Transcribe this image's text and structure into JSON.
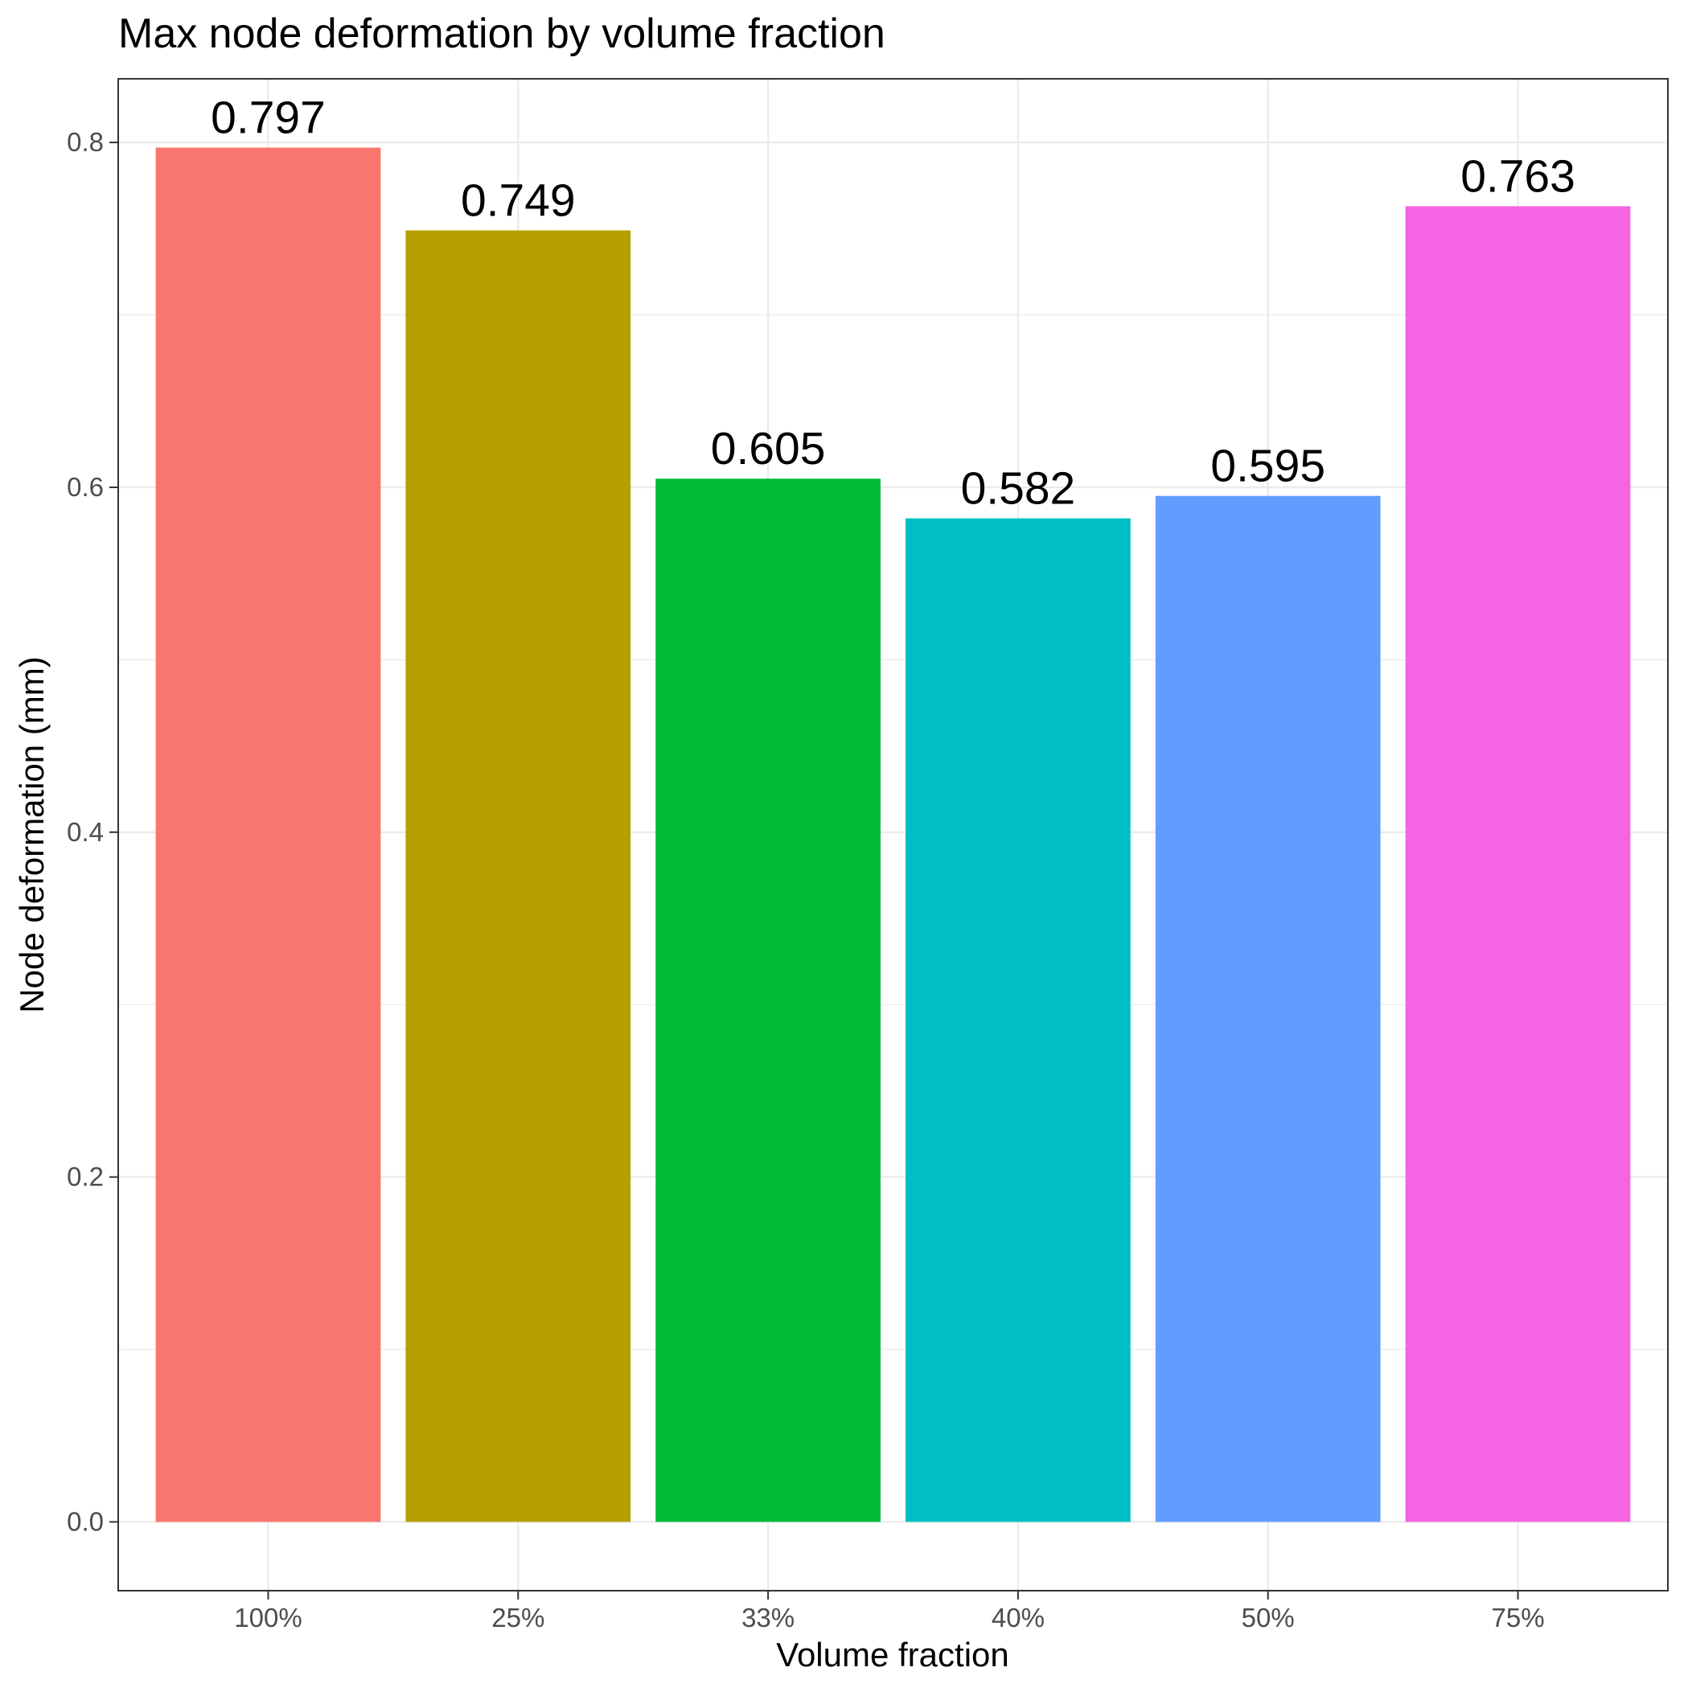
{
  "chart_data": {
    "type": "bar",
    "title": "Max node deformation by volume fraction",
    "xlabel": "Volume fraction",
    "ylabel": "Node deformation (mm)",
    "categories": [
      "100%",
      "25%",
      "33%",
      "40%",
      "50%",
      "75%"
    ],
    "values": [
      0.797,
      0.749,
      0.605,
      0.582,
      0.595,
      0.763
    ],
    "value_labels": [
      "0.797",
      "0.749",
      "0.605",
      "0.582",
      "0.595",
      "0.763"
    ],
    "colors": [
      "#F8766D",
      "#B79F00",
      "#00BA38",
      "#00BFC4",
      "#619CFF",
      "#F564E3"
    ],
    "ylim": [
      -0.0399,
      0.8369
    ],
    "yticks": [
      0.0,
      0.2,
      0.4,
      0.6,
      0.8
    ],
    "ytick_labels": [
      "0.0",
      "0.2",
      "0.4",
      "0.6",
      "0.8"
    ],
    "grid": true,
    "legend": "none"
  }
}
